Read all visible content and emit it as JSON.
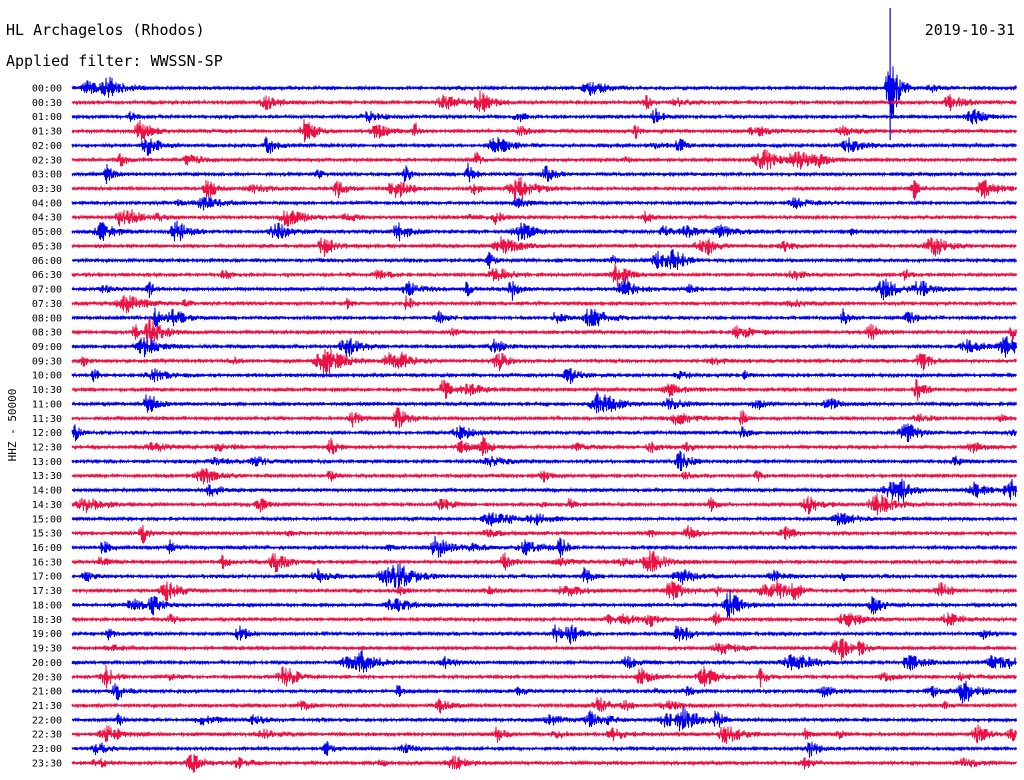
{
  "header": {
    "station": "HL Archagelos (Rhodos)",
    "filter": "Applied filter: WWSSN-SP",
    "date": "2019-10-31"
  },
  "colors": {
    "even_rows": "#0000ee",
    "odd_rows": "#ee1144"
  },
  "chart_data": {
    "type": "line",
    "ylabel": "HHZ - 50000",
    "row_labels": [
      "00:00",
      "00:30",
      "01:00",
      "01:30",
      "02:00",
      "02:30",
      "03:00",
      "03:30",
      "04:00",
      "04:30",
      "05:00",
      "05:30",
      "06:00",
      "06:30",
      "07:00",
      "07:30",
      "08:00",
      "08:30",
      "09:00",
      "09:30",
      "10:00",
      "10:30",
      "11:00",
      "11:30",
      "12:00",
      "12:30",
      "13:00",
      "13:30",
      "14:00",
      "14:30",
      "15:00",
      "15:30",
      "16:00",
      "16:30",
      "17:00",
      "17:30",
      "18:00",
      "18:30",
      "19:00",
      "19:30",
      "20:00",
      "20:30",
      "21:00",
      "21:30",
      "22:00",
      "22:30",
      "23:00",
      "23:30"
    ],
    "row_minutes": 30,
    "major_event": {
      "row": "00:00",
      "minute": 26.0
    }
  }
}
